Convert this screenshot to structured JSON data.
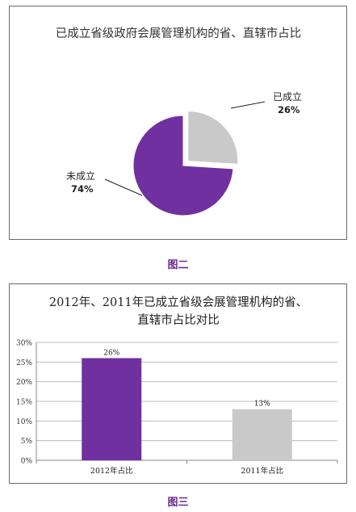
{
  "captions": {
    "figure2": "图二",
    "figure3": "图三"
  },
  "chart_data": [
    {
      "type": "pie",
      "title": "已成立省级政府会展管理机构的省、直辖市占比",
      "slices": [
        {
          "label": "已成立",
          "value": 26,
          "value_label": "26%",
          "color": "#c9c9c9",
          "exploded": true
        },
        {
          "label": "未成立",
          "value": 74,
          "value_label": "74%",
          "color": "#7030a0",
          "exploded": false
        }
      ]
    },
    {
      "type": "bar",
      "title": [
        "2012年、2011年已成立省级会展管理机构的省、",
        "直辖市占比对比"
      ],
      "categories": [
        "2012年占比",
        "2011年占比"
      ],
      "values": [
        26,
        13
      ],
      "value_labels": [
        "26%",
        "13%"
      ],
      "colors": [
        "#7030a0",
        "#c9c9c9"
      ],
      "ylim": [
        0,
        30
      ],
      "yticks": [
        0,
        5,
        10,
        15,
        20,
        25,
        30
      ],
      "ytick_labels": [
        "0%",
        "5%",
        "10%",
        "15%",
        "20%",
        "25%",
        "30%"
      ],
      "grid": true
    }
  ]
}
